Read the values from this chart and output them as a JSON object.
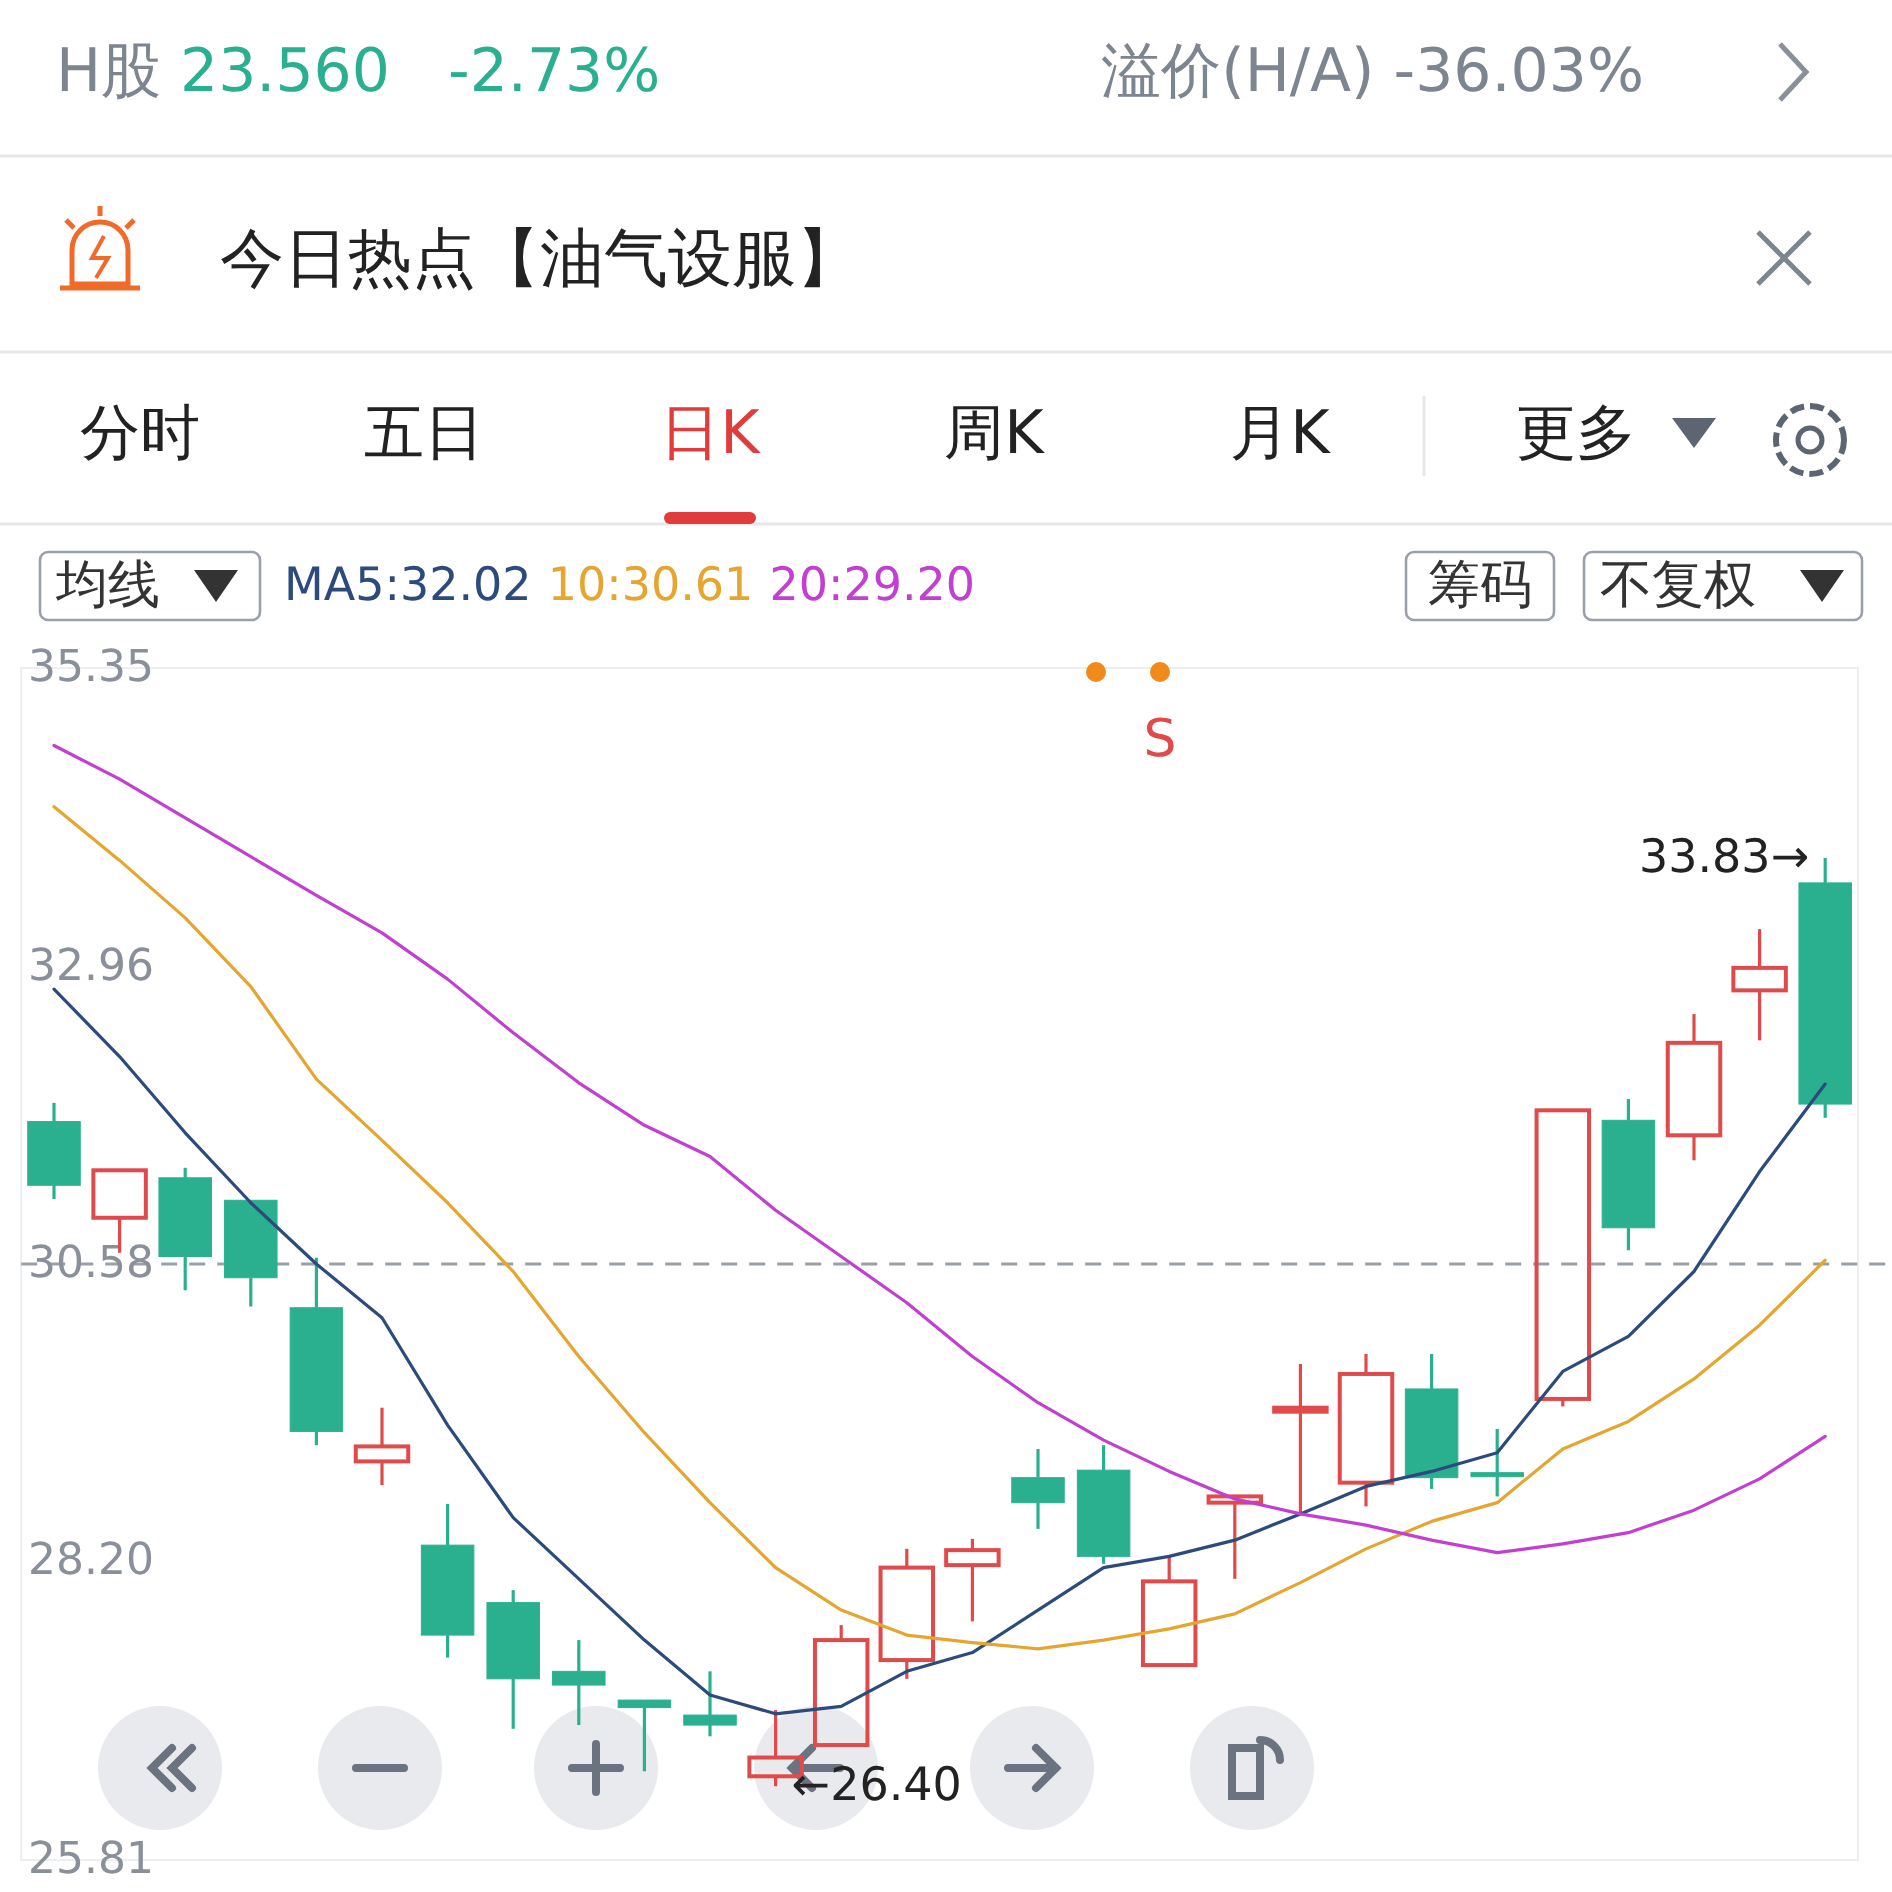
{
  "chart_data": {
    "type": "candlestick",
    "title": "今日热点【油气设服】",
    "categories": [
      null,
      null,
      null,
      null,
      null,
      null,
      null,
      null,
      null,
      null,
      null,
      null,
      null,
      null,
      null,
      null,
      null,
      null,
      null,
      null,
      null,
      null,
      null,
      null,
      null,
      null,
      null,
      null
    ],
    "ohlc": [
      [
        31.72,
        31.87,
        31.1,
        31.21
      ],
      [
        30.95,
        31.33,
        30.67,
        31.33
      ],
      [
        31.27,
        31.35,
        30.37,
        30.64
      ],
      [
        31.09,
        31.09,
        30.24,
        30.47
      ],
      [
        30.23,
        30.63,
        29.13,
        29.24
      ],
      [
        29.0,
        29.43,
        28.81,
        29.12
      ],
      [
        28.33,
        28.66,
        27.43,
        27.61
      ],
      [
        27.87,
        27.97,
        26.86,
        27.26
      ],
      [
        27.32,
        27.57,
        26.89,
        27.21
      ],
      [
        27.09,
        27.09,
        26.52,
        27.03
      ],
      [
        26.97,
        27.32,
        26.8,
        26.89
      ],
      [
        26.48,
        27.01,
        26.4,
        26.63
      ],
      [
        26.73,
        27.69,
        26.73,
        27.57
      ],
      [
        27.41,
        28.3,
        27.26,
        28.15
      ],
      [
        28.17,
        28.38,
        27.72,
        28.29
      ],
      [
        28.87,
        29.1,
        28.46,
        28.67
      ],
      [
        28.93,
        29.13,
        28.18,
        28.24
      ],
      [
        27.37,
        28.24,
        27.37,
        28.04
      ],
      [
        28.67,
        28.73,
        28.06,
        28.72
      ],
      [
        29.43,
        29.78,
        28.58,
        29.43
      ],
      [
        28.83,
        29.86,
        28.64,
        29.7
      ],
      [
        29.58,
        29.86,
        28.78,
        28.87
      ],
      [
        28.91,
        29.26,
        28.72,
        28.89
      ],
      [
        29.5,
        31.81,
        29.44,
        31.81
      ],
      [
        31.73,
        31.9,
        30.69,
        30.87
      ],
      [
        31.61,
        32.58,
        31.41,
        32.35
      ],
      [
        32.77,
        33.26,
        32.37,
        32.95
      ],
      [
        33.63,
        33.83,
        31.75,
        31.86
      ]
    ],
    "colors": [
      "#2bb08f",
      "#e04a4a",
      "#2bb08f",
      "#2bb08f",
      "#2bb08f",
      "#e04a4a",
      "#2bb08f",
      "#2bb08f",
      "#2bb08f",
      "#2bb08f",
      "#2bb08f",
      "#e04a4a",
      "#e04a4a",
      "#e04a4a",
      "#e04a4a",
      "#2bb08f",
      "#2bb08f",
      "#e04a4a",
      "#e04a4a",
      "#e04a4a",
      "#e04a4a",
      "#2bb08f",
      "#2bb08f",
      "#e04a4a",
      "#2bb08f",
      "#e04a4a",
      "#e04a4a",
      "#2bb08f"
    ],
    "series": [
      {
        "name": "MA5:32.02",
        "type": "line",
        "color": "#2d4a7c",
        "values": [
          32.78,
          32.24,
          31.63,
          31.07,
          30.58,
          30.15,
          29.29,
          28.55,
          28.06,
          27.57,
          27.13,
          26.98,
          27.04,
          27.32,
          27.47,
          27.81,
          28.15,
          28.24,
          28.37,
          28.58,
          28.8,
          28.92,
          29.07,
          29.72,
          30.0,
          30.52,
          31.32,
          32.02
        ]
      },
      {
        "name": "10:30.61",
        "type": "line",
        "color": "#e5a630",
        "values": [
          34.24,
          33.81,
          33.35,
          32.8,
          32.06,
          31.57,
          31.07,
          30.52,
          29.84,
          29.23,
          28.67,
          28.15,
          27.81,
          27.61,
          27.55,
          27.5,
          27.57,
          27.66,
          27.78,
          28.03,
          28.3,
          28.52,
          28.67,
          29.1,
          29.32,
          29.66,
          30.09,
          30.61
        ]
      },
      {
        "name": "20:29.20",
        "type": "line",
        "color": "#c23fd1",
        "values": [
          34.73,
          34.46,
          34.15,
          33.84,
          33.53,
          33.23,
          32.86,
          32.43,
          32.03,
          31.69,
          31.44,
          31.01,
          30.64,
          30.27,
          29.84,
          29.47,
          29.17,
          28.92,
          28.7,
          28.58,
          28.49,
          28.37,
          28.27,
          28.34,
          28.43,
          28.61,
          28.86,
          29.2
        ]
      }
    ],
    "ylim": [
      25.81,
      35.35
    ],
    "yticks": [
      35.35,
      32.96,
      30.58,
      {
        "value": 28.2,
        "label": "28.20"
      },
      25.81
    ],
    "tick_labels": "y",
    "legend": "top",
    "ref_lines": [
      {
        "axis": "y",
        "value": 30.58,
        "line_style": "dashed",
        "color": "#9aa0aa"
      }
    ],
    "annotations": [
      "H股",
      "23.560",
      "-2.73%",
      "溢价(H/A) -36.03%",
      "分时",
      "五日",
      "日K",
      "周K",
      "月K",
      "更多",
      "均线",
      "筹码",
      "不复权",
      "S",
      "33.83→",
      "←26.40"
    ]
  }
}
